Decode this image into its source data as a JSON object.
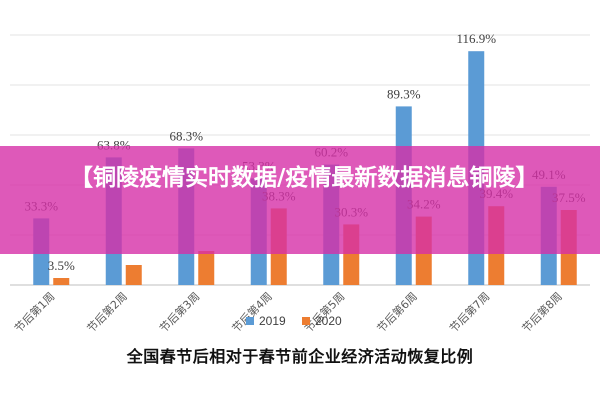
{
  "chart_data": {
    "type": "bar",
    "title": "全国春节后相对于春节前企业经济活动恢复比例",
    "categories": [
      "节后第1周",
      "节后第2周",
      "节后第3周",
      "节后第4周",
      "节后第5周",
      "节后第6周",
      "节后第7周",
      "节后第8周"
    ],
    "series": [
      {
        "name": "2019",
        "color": "#5b9bd5",
        "values": [
          33.3,
          63.8,
          68.3,
          53.3,
          60.2,
          89.3,
          116.9,
          49.1
        ],
        "labels": [
          "33.3%",
          "63.8%",
          "68.3%",
          "53.3%",
          "60.2%",
          "89.3%",
          "116.9%",
          "49.1%"
        ]
      },
      {
        "name": "2020",
        "color": "#ed7d31",
        "values": [
          3.5,
          10.0,
          17.0,
          38.3,
          30.3,
          34.2,
          39.4,
          37.5
        ],
        "labels": [
          "3.5%",
          "",
          "",
          "38.3%",
          "30.3%",
          "34.2%",
          "39.4%",
          "37.5%"
        ]
      }
    ],
    "ylim": [
      0,
      125
    ],
    "grid": true,
    "legend": "bottom"
  },
  "banner": {
    "text": "【铜陵疫情实时数据/疫情最新数据消息铜陵】",
    "color": "#d630a8"
  }
}
